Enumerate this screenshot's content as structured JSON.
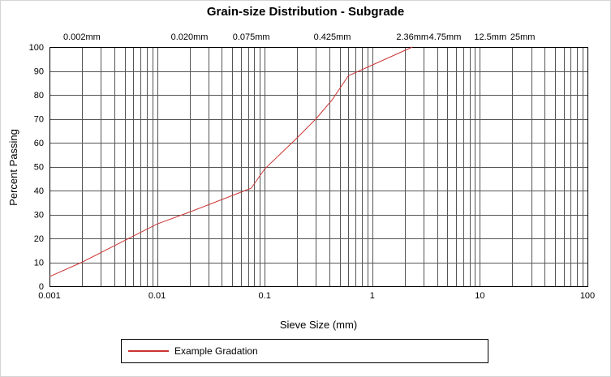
{
  "chart_data": {
    "type": "line",
    "title": "Grain-size Distribution - Subgrade",
    "xlabel": "Sieve Size (mm)",
    "ylabel": "Percent Passing",
    "x_scale": "log",
    "xlim": [
      0.001,
      100
    ],
    "ylim": [
      0,
      100
    ],
    "grid": {
      "show": true,
      "minor_log_x": true,
      "color": "#555555"
    },
    "frame_color": "#000000",
    "x_ticks": [
      {
        "value": 0.001,
        "label": "0.001"
      },
      {
        "value": 0.01,
        "label": "0.01"
      },
      {
        "value": 0.1,
        "label": "0.1"
      },
      {
        "value": 1,
        "label": "1"
      },
      {
        "value": 10,
        "label": "10"
      },
      {
        "value": 100,
        "label": "100"
      }
    ],
    "y_ticks": [
      {
        "value": 0,
        "label": "0"
      },
      {
        "value": 10,
        "label": "10"
      },
      {
        "value": 20,
        "label": "20"
      },
      {
        "value": 30,
        "label": "30"
      },
      {
        "value": 40,
        "label": "40"
      },
      {
        "value": 50,
        "label": "50"
      },
      {
        "value": 60,
        "label": "60"
      },
      {
        "value": 70,
        "label": "70"
      },
      {
        "value": 80,
        "label": "80"
      },
      {
        "value": 90,
        "label": "90"
      },
      {
        "value": 100,
        "label": "100"
      }
    ],
    "top_markers": [
      {
        "value": 0.002,
        "label": "0.002mm"
      },
      {
        "value": 0.02,
        "label": "0.020mm"
      },
      {
        "value": 0.075,
        "label": "0.075mm"
      },
      {
        "value": 0.425,
        "label": "0.425mm"
      },
      {
        "value": 2.36,
        "label": "2.36mm"
      },
      {
        "value": 4.75,
        "label": "4.75mm"
      },
      {
        "value": 12.5,
        "label": "12.5mm"
      },
      {
        "value": 25,
        "label": "25mm"
      }
    ],
    "series": [
      {
        "name": "Example Gradation",
        "color": "#cc3333",
        "points": [
          [
            0.001,
            4
          ],
          [
            0.002,
            10
          ],
          [
            0.01,
            26
          ],
          [
            0.02,
            31
          ],
          [
            0.075,
            41
          ],
          [
            0.1,
            49
          ],
          [
            0.2,
            62
          ],
          [
            0.3,
            70
          ],
          [
            0.425,
            78
          ],
          [
            0.6,
            88
          ],
          [
            2.36,
            100
          ]
        ]
      }
    ],
    "legend": {
      "position": "bottom"
    }
  }
}
